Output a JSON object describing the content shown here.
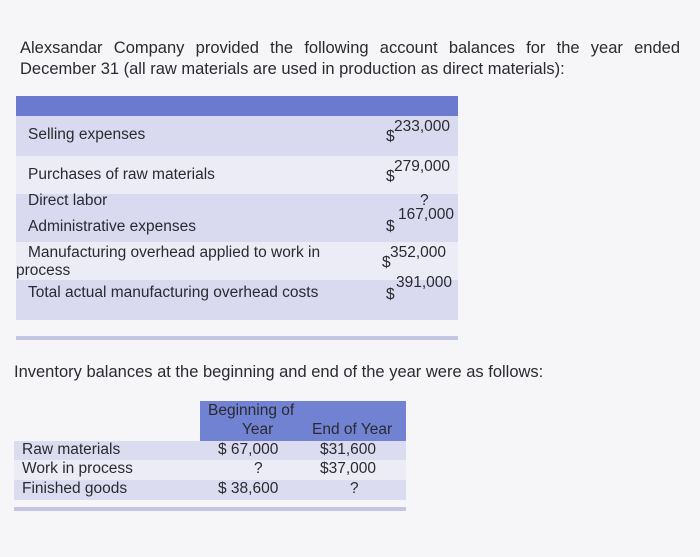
{
  "intro": "Alexsandar Company provided the following account balances for the year ended December 31 (all raw materials are used in production as direct materials):",
  "accounts": [
    {
      "label": "Selling expenses",
      "dollar": "$",
      "amount": "233,000"
    },
    {
      "label": "Purchases of raw materials",
      "dollar": "$",
      "amount": "279,000"
    },
    {
      "label": "Direct labor",
      "dollar": "",
      "amount": "?"
    },
    {
      "label": "Administrative expenses",
      "dollar": "$",
      "amount": "167,000"
    },
    {
      "label": "Manufacturing overhead applied to work in process",
      "dollar": "$",
      "amount": "352,000"
    },
    {
      "label": "Total actual manufacturing overhead costs",
      "dollar": "$",
      "amount": "391,000"
    }
  ],
  "inventory_intro": "Inventory balances at the beginning and end of the year were as follows:",
  "inventory": {
    "headers": {
      "beginning": "Beginning of Year",
      "beginning_line1": "Beginning of",
      "beginning_line2": "Year",
      "end": "End of Year"
    },
    "rows": [
      {
        "label": "Raw materials",
        "beginning": "$ 67,000",
        "end": "$31,600"
      },
      {
        "label": "Work in process",
        "beginning": "?",
        "end": "$37,000"
      },
      {
        "label": "Finished goods",
        "beginning": "$ 38,600",
        "end": "?"
      }
    ]
  }
}
